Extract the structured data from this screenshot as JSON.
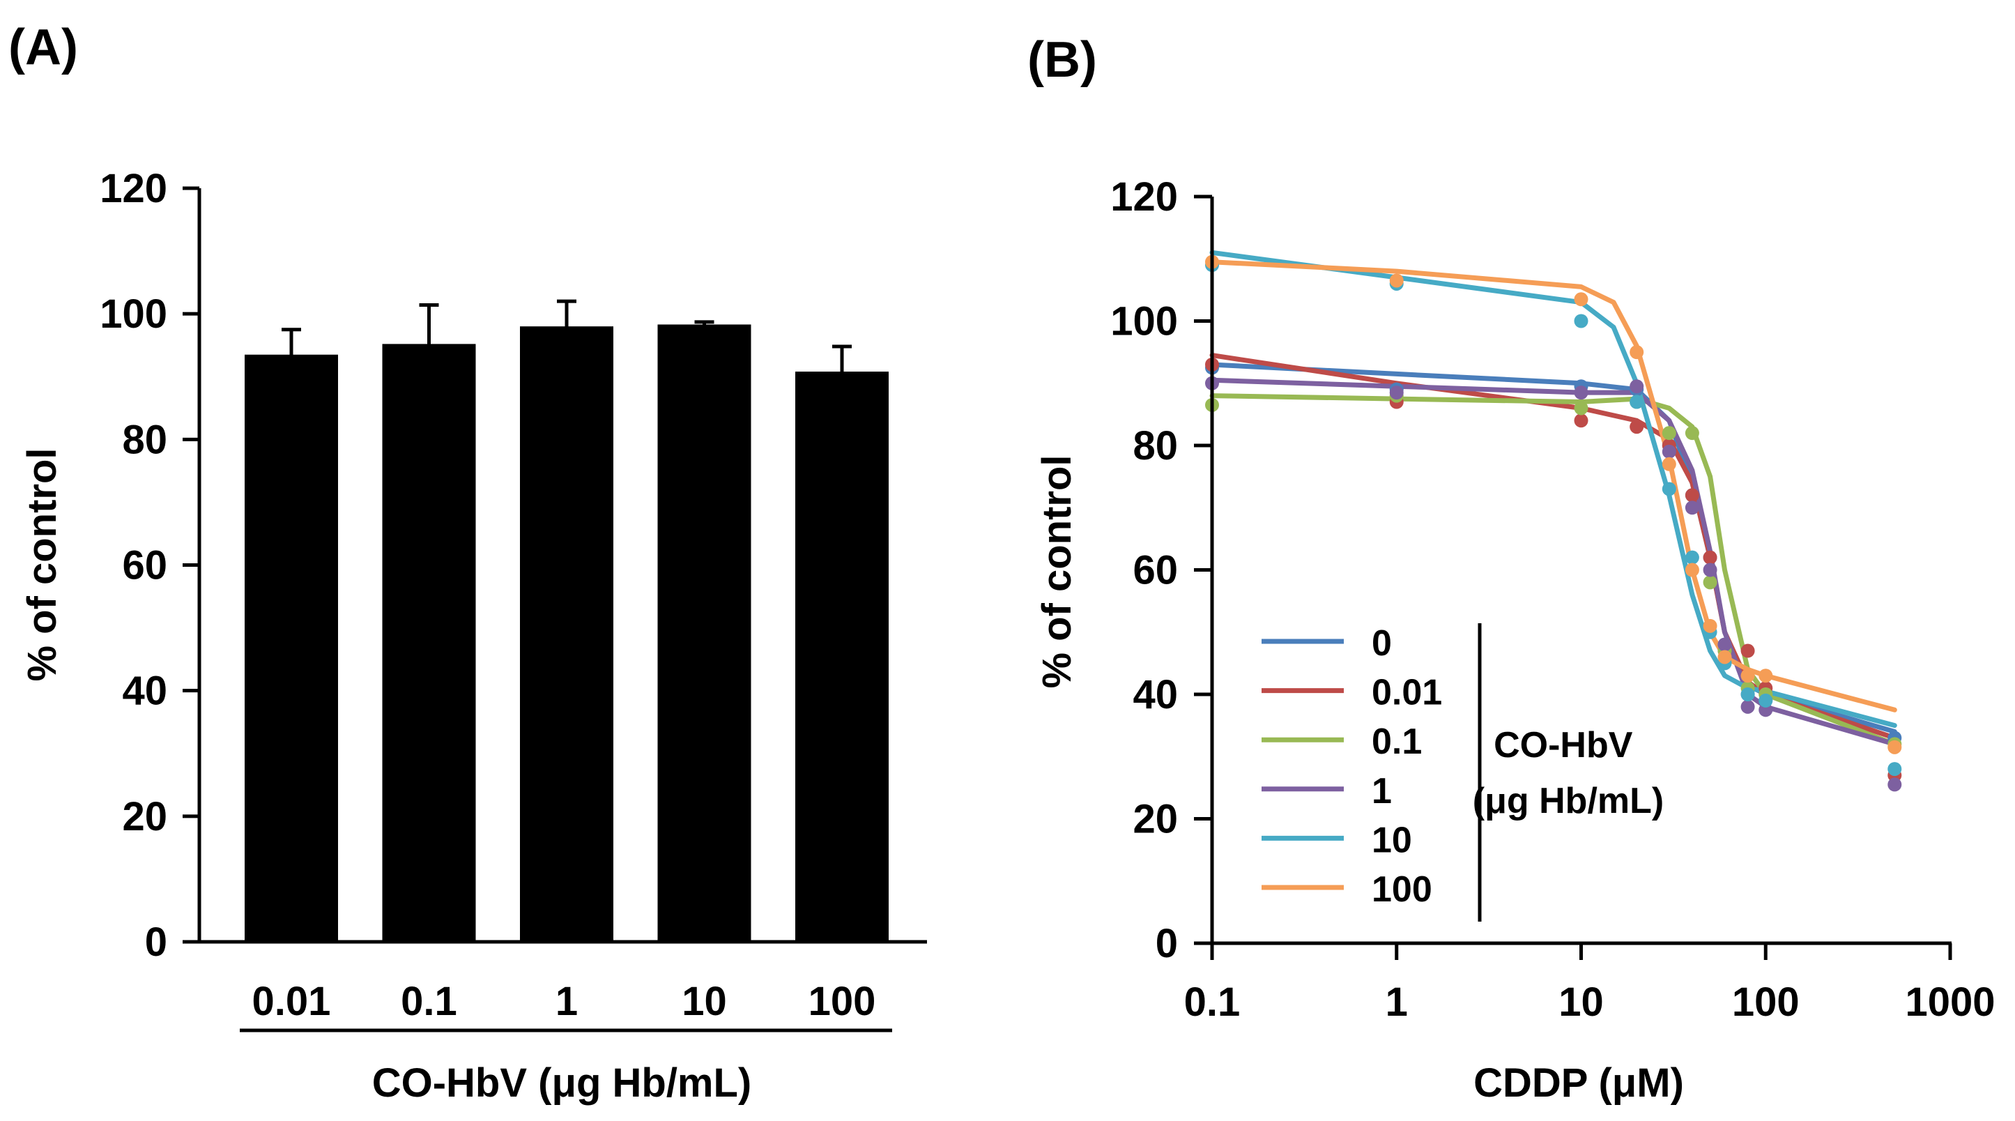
{
  "chart_data": [
    {
      "panel": "(A)",
      "type": "bar",
      "title": "",
      "ylabel": "% of control",
      "xlabel": "CO-HbV (μg Hb/mL)",
      "ylim": [
        0,
        120
      ],
      "yticks": [
        "0",
        "20",
        "40",
        "60",
        "80",
        "100",
        "120"
      ],
      "categories": [
        "0.01",
        "0.1",
        "1",
        "10",
        "100"
      ],
      "values": [
        93.5,
        95.2,
        98.0,
        98.3,
        90.8
      ],
      "errors": [
        4.0,
        6.2,
        4.0,
        0.4,
        4.0
      ],
      "bar_color": "#000000"
    },
    {
      "panel": "(B)",
      "type": "line",
      "title": "",
      "ylabel": "% of control",
      "xlabel": "CDDP (μM)",
      "xscale": "log",
      "xlim": [
        0.1,
        1000
      ],
      "ylim": [
        0,
        120
      ],
      "xticks": [
        "0.1",
        "1",
        "10",
        "100",
        "1000"
      ],
      "yticks": [
        "0",
        "20",
        "40",
        "60",
        "80",
        "100",
        "120"
      ],
      "legend_title": "CO-HbV\n(μg Hb/mL)",
      "legend_title_lines": [
        "CO-HbV",
        "(μg Hb/mL)"
      ],
      "legend_position": "lower-left",
      "series": [
        {
          "name": "0",
          "color": "#4a7ebb",
          "points": [
            [
              0.1,
              92.5
            ],
            [
              1,
              89
            ],
            [
              10,
              89.5
            ],
            [
              20,
              89
            ],
            [
              30,
              80
            ],
            [
              40,
              72
            ],
            [
              50,
              62
            ],
            [
              60,
              48
            ],
            [
              80,
              40
            ],
            [
              100,
              39
            ],
            [
              500,
              33
            ]
          ],
          "fit": [
            [
              0.1,
              93
            ],
            [
              1,
              91.5
            ],
            [
              10,
              90
            ],
            [
              20,
              89
            ],
            [
              30,
              84
            ],
            [
              40,
              74
            ],
            [
              50,
              62
            ],
            [
              60,
              50
            ],
            [
              80,
              41.5
            ],
            [
              100,
              40
            ],
            [
              500,
              34
            ]
          ]
        },
        {
          "name": "0.01",
          "color": "#be4b48",
          "points": [
            [
              0.1,
              93
            ],
            [
              1,
              87
            ],
            [
              10,
              84
            ],
            [
              20,
              83
            ],
            [
              30,
              80
            ],
            [
              40,
              72
            ],
            [
              50,
              62
            ],
            [
              60,
              47
            ],
            [
              80,
              47
            ],
            [
              100,
              41
            ],
            [
              500,
              27
            ]
          ],
          "fit": [
            [
              0.1,
              94.5
            ],
            [
              1,
              90
            ],
            [
              10,
              86
            ],
            [
              20,
              84
            ],
            [
              30,
              81
            ],
            [
              40,
              74
            ],
            [
              50,
              62
            ],
            [
              60,
              50
            ],
            [
              80,
              42
            ],
            [
              100,
              40
            ],
            [
              500,
              33
            ]
          ]
        },
        {
          "name": "0.1",
          "color": "#98b954",
          "points": [
            [
              0.1,
              86.5
            ],
            [
              1,
              88
            ],
            [
              10,
              86
            ],
            [
              20,
              87
            ],
            [
              30,
              82
            ],
            [
              40,
              82
            ],
            [
              50,
              58
            ],
            [
              60,
              47
            ],
            [
              80,
              41
            ],
            [
              100,
              40
            ],
            [
              500,
              32
            ]
          ],
          "fit": [
            [
              0.1,
              88
            ],
            [
              1,
              87.5
            ],
            [
              10,
              87
            ],
            [
              20,
              87.5
            ],
            [
              30,
              86
            ],
            [
              40,
              83
            ],
            [
              50,
              75
            ],
            [
              60,
              60
            ],
            [
              80,
              44
            ],
            [
              100,
              40
            ],
            [
              500,
              32
            ]
          ]
        },
        {
          "name": "1",
          "color": "#7d60a0",
          "points": [
            [
              0.1,
              90
            ],
            [
              1,
              88.5
            ],
            [
              10,
              88.5
            ],
            [
              20,
              89.5
            ],
            [
              30,
              79
            ],
            [
              40,
              70
            ],
            [
              50,
              60
            ],
            [
              60,
              48
            ],
            [
              80,
              38
            ],
            [
              100,
              37.5
            ],
            [
              500,
              25.5
            ]
          ],
          "fit": [
            [
              0.1,
              90.5
            ],
            [
              1,
              89.5
            ],
            [
              10,
              88.5
            ],
            [
              20,
              88.5
            ],
            [
              30,
              84
            ],
            [
              40,
              76
            ],
            [
              50,
              63
            ],
            [
              60,
              50
            ],
            [
              80,
              40
            ],
            [
              100,
              38
            ],
            [
              500,
              32
            ]
          ]
        },
        {
          "name": "10",
          "color": "#46aac5",
          "points": [
            [
              0.1,
              109
            ],
            [
              1,
              106
            ],
            [
              10,
              100
            ],
            [
              20,
              87
            ],
            [
              30,
              73
            ],
            [
              40,
              62
            ],
            [
              50,
              50
            ],
            [
              60,
              45
            ],
            [
              80,
              40
            ],
            [
              100,
              39
            ],
            [
              500,
              28
            ]
          ],
          "fit": [
            [
              0.1,
              111
            ],
            [
              1,
              107
            ],
            [
              10,
              103
            ],
            [
              15,
              99
            ],
            [
              20,
              90
            ],
            [
              30,
              72
            ],
            [
              40,
              56
            ],
            [
              50,
              47
            ],
            [
              60,
              43
            ],
            [
              80,
              41
            ],
            [
              100,
              40.5
            ],
            [
              500,
              35
            ]
          ]
        },
        {
          "name": "100",
          "color": "#f59d56",
          "points": [
            [
              0.1,
              109.5
            ],
            [
              1,
              106.5
            ],
            [
              10,
              103.5
            ],
            [
              20,
              95
            ],
            [
              30,
              77
            ],
            [
              40,
              60
            ],
            [
              50,
              51
            ],
            [
              60,
              46
            ],
            [
              80,
              43
            ],
            [
              100,
              43
            ],
            [
              500,
              31.5
            ]
          ],
          "fit": [
            [
              0.1,
              109.5
            ],
            [
              1,
              108
            ],
            [
              10,
              105.5
            ],
            [
              15,
              103
            ],
            [
              20,
              96
            ],
            [
              30,
              78
            ],
            [
              40,
              60
            ],
            [
              50,
              50
            ],
            [
              60,
              46
            ],
            [
              80,
              44
            ],
            [
              100,
              43
            ],
            [
              500,
              37.5
            ]
          ]
        }
      ]
    }
  ]
}
